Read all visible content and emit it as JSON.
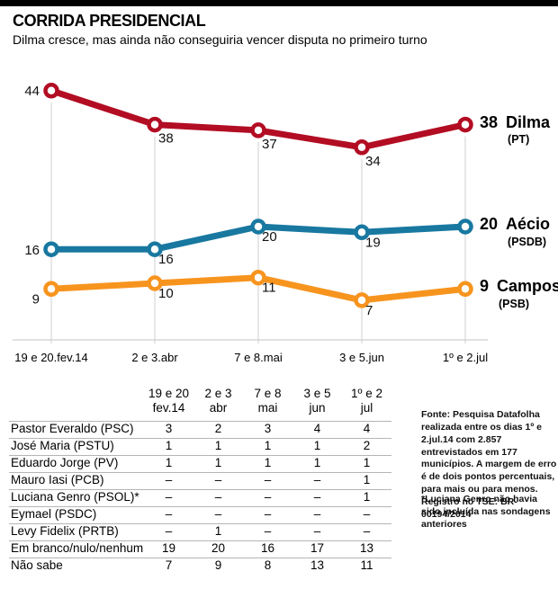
{
  "chart_data": {
    "type": "line",
    "title": "CORRIDA PRESIDENCIAL",
    "subtitle": "Dilma cresce, mas ainda não conseguiria vencer disputa no primeiro turno",
    "x_labels": [
      "19 e 20.fev.14",
      "2 e 3.abr",
      "7 e 8.mai",
      "3 e 5.jun",
      "1º e 2.jul"
    ],
    "series": [
      {
        "name": "Dilma",
        "party": "(PT)",
        "color": "#b20d23",
        "values": [
          44,
          38,
          37,
          34,
          38
        ]
      },
      {
        "name": "Aécio",
        "party": "(PSDB)",
        "color": "#1878a0",
        "values": [
          16,
          16,
          20,
          19,
          20
        ]
      },
      {
        "name": "Campos",
        "party": "(PSB)",
        "color": "#f7941e",
        "values": [
          9,
          10,
          11,
          7,
          9
        ]
      }
    ],
    "ylim": [
      0,
      48
    ],
    "grid": "vertical-ticks",
    "legend_position": "right-of-last-point",
    "unit": "%"
  },
  "table": {
    "col_headers": [
      [
        "19 e 20",
        "fev.14"
      ],
      [
        "2 e 3",
        "abr"
      ],
      [
        "7 e 8",
        "mai"
      ],
      [
        "3 e 5",
        "jun"
      ],
      [
        "1º e 2",
        "jul"
      ]
    ],
    "rows": [
      {
        "label": "Pastor Everaldo (PSC)",
        "values": [
          "3",
          "2",
          "3",
          "4",
          "4"
        ]
      },
      {
        "label": "José Maria (PSTU)",
        "values": [
          "1",
          "1",
          "1",
          "1",
          "2"
        ]
      },
      {
        "label": "Eduardo Jorge (PV)",
        "values": [
          "1",
          "1",
          "1",
          "1",
          "1"
        ]
      },
      {
        "label": "Mauro Iasi (PCB)",
        "values": [
          "–",
          "–",
          "–",
          "–",
          "1"
        ]
      },
      {
        "label": "Luciana Genro (PSOL)*",
        "values": [
          "–",
          "–",
          "–",
          "–",
          "1"
        ]
      },
      {
        "label": "Eymael (PSDC)",
        "values": [
          "–",
          "–",
          "–",
          "–",
          "–"
        ]
      },
      {
        "label": "Levy Fidelix (PRTB)",
        "values": [
          "–",
          "1",
          "–",
          "–",
          "–"
        ]
      },
      {
        "label": "Em branco/nulo/nenhum",
        "values": [
          "19",
          "20",
          "16",
          "17",
          "13"
        ]
      },
      {
        "label": "Não sabe",
        "values": [
          "7",
          "9",
          "8",
          "13",
          "11"
        ]
      }
    ]
  },
  "notes": {
    "source": "Fonte: Pesquisa Datafolha realizada entre os dias 1º e 2.jul.14 com 2.857 entrevistados em 177 municípios. A margem de erro é de dois pontos percentuais, para mais ou para menos. Registro no TSE: BR-00194/2014",
    "footnote": "*Luciana Genro não havia sido incluída nas sondagens anteriores"
  },
  "colors": {
    "dilma": "#b20d23",
    "aecio": "#1878a0",
    "campos": "#f7941e",
    "gridline": "#cfcfcf",
    "table_rule": "#b5b5b5",
    "topbar": "#000000"
  }
}
